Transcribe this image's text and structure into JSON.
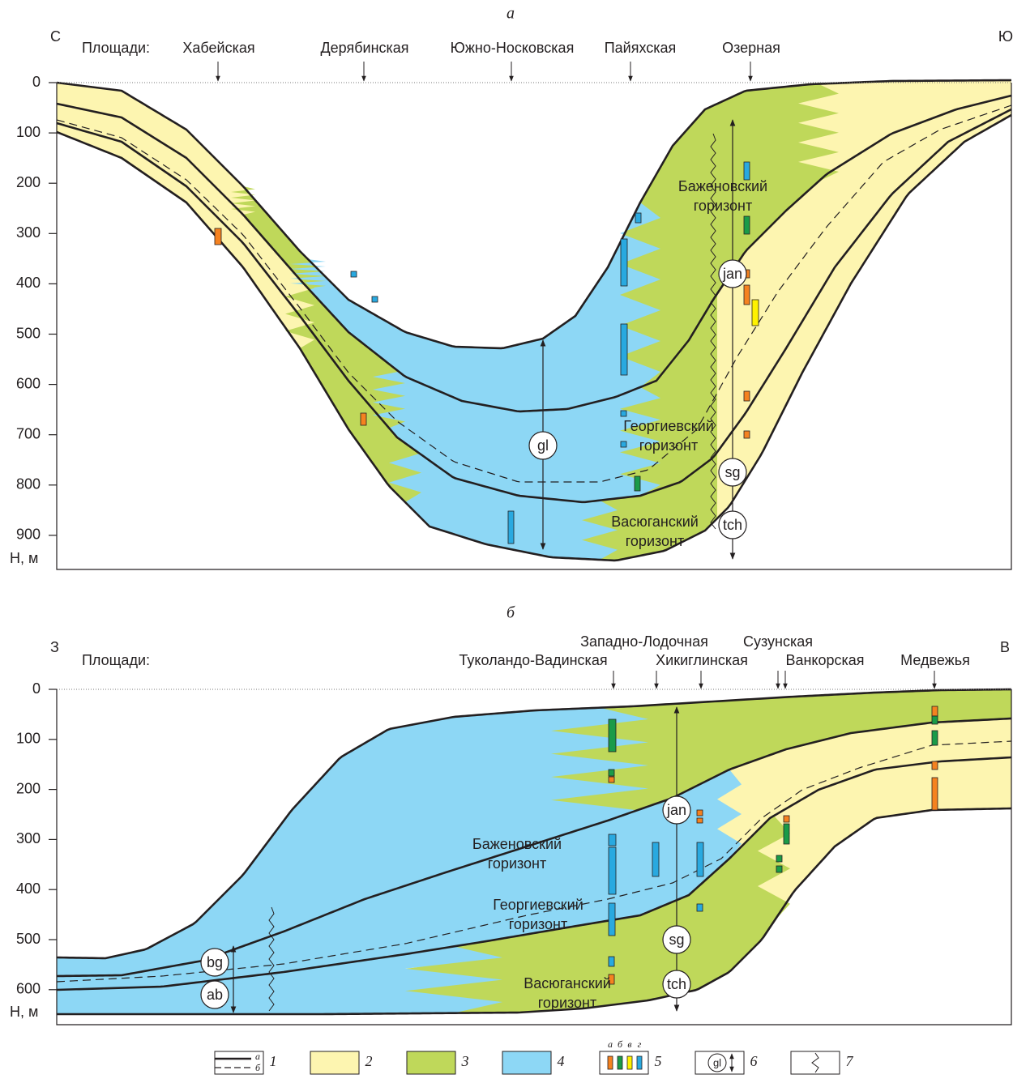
{
  "panel_a": {
    "label": "а",
    "left_direction": "С",
    "right_direction": "Ю",
    "areas_title": "Площади:",
    "areas": [
      "Хабейская",
      "Дерябинская",
      "Южно-Носковская",
      "Пайяхская",
      "Озерная"
    ],
    "depth_ticks": [
      0,
      100,
      200,
      300,
      400,
      500,
      600,
      700,
      800,
      900
    ],
    "depth_axis": "H, м",
    "horizons": {
      "bazhenov": [
        "Баженовский",
        "горизонт"
      ],
      "georgiev": [
        "Георгиевский",
        "горизонт"
      ],
      "vasyugan": [
        "Васюганский",
        "горизонт"
      ]
    },
    "markers": [
      "jan",
      "gl",
      "sg",
      "tch"
    ]
  },
  "panel_b": {
    "label": "б",
    "left_direction": "З",
    "right_direction": "В",
    "areas_title": "Площади:",
    "areas": [
      "Западно-Лодочная",
      "Сузунская",
      "Туколандо-Вадинская",
      "Хикиглинская",
      "Ванкорская",
      "Медвежья"
    ],
    "depth_ticks": [
      0,
      100,
      200,
      300,
      400,
      500,
      600
    ],
    "depth_axis": "H, м",
    "horizons": {
      "bazhenov": [
        "Баженовский",
        "горизонт"
      ],
      "georgiev": [
        "Георгиевский",
        "горизонт"
      ],
      "vasyugan": [
        "Васюганский",
        "горизонт"
      ]
    },
    "markers": [
      "jan",
      "sg",
      "tch",
      "bg",
      "ab"
    ]
  },
  "legend": {
    "items": [
      "1",
      "2",
      "3",
      "4",
      "5",
      "6",
      "7"
    ],
    "line_types": [
      "а",
      "б"
    ],
    "sample_types": [
      "а",
      "б",
      "в",
      "г"
    ],
    "marker_example": "gl"
  }
}
